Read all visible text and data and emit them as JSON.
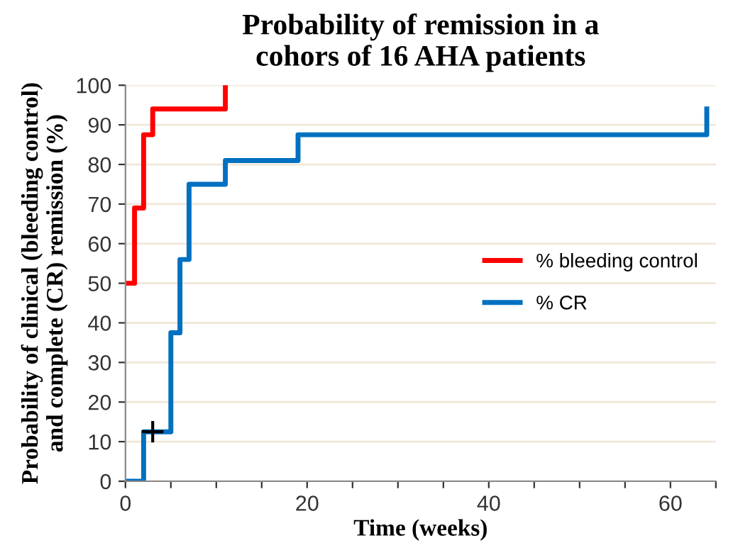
{
  "chart_data": {
    "type": "step",
    "title": "Probability of remission in a\ncohors of 16 AHA patients",
    "xlabel": "Time (weeks)",
    "ylabel": "Probability of clinical (bleeding control)\nand complete (CR) remission (%)",
    "series": [
      {
        "name": "% bleeding control",
        "color": "#ff0000",
        "x": [
          0,
          1,
          2,
          3,
          11
        ],
        "values": [
          50,
          69,
          87.5,
          94,
          100
        ]
      },
      {
        "name": "% CR",
        "color": "#0070c0",
        "x": [
          0,
          2,
          5,
          6,
          7,
          11,
          19,
          64
        ],
        "values": [
          0,
          12.5,
          37.5,
          56,
          75,
          81,
          87.5,
          94
        ]
      },
      {
        "type": "scatter",
        "color": "#000000",
        "marker": "cross",
        "x": [
          3
        ],
        "values": [
          12.5
        ]
      }
    ],
    "xlim": [
      0,
      65
    ],
    "xticks": [
      0,
      {
        "value": 5,
        "label": null
      },
      {
        "value": 10,
        "label": null
      },
      {
        "value": 15,
        "label": null
      },
      20,
      {
        "value": 25,
        "label": null
      },
      {
        "value": 30,
        "label": null
      },
      {
        "value": 35,
        "label": null
      },
      40,
      {
        "value": 45,
        "label": null
      },
      {
        "value": 50,
        "label": null
      },
      {
        "value": 55,
        "label": null
      },
      60,
      {
        "value": 65,
        "label": null
      }
    ],
    "ylim": [
      0,
      100
    ],
    "yticks": [
      0,
      10,
      20,
      30,
      40,
      50,
      60,
      70,
      80,
      90,
      100
    ],
    "grid": "y",
    "legend": "right"
  }
}
